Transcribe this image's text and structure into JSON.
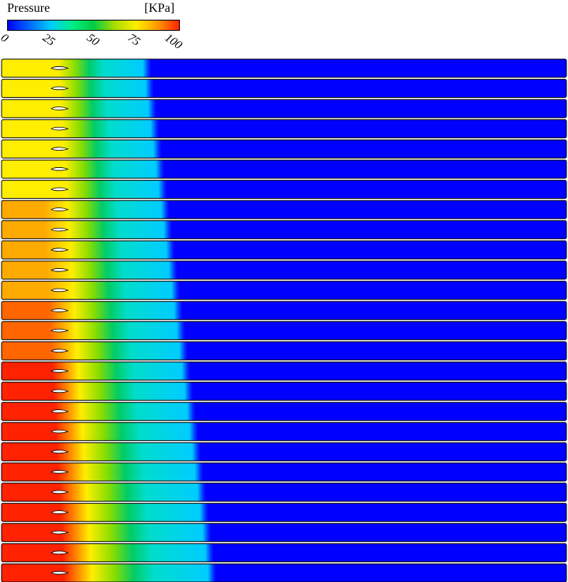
{
  "legend": {
    "title": "Pressure",
    "unit": "[KPa]",
    "ticks": [
      "0",
      "25",
      "50",
      "75",
      "100"
    ],
    "range": [
      0,
      100
    ],
    "colormap": [
      "#0000ff",
      "#0066ff",
      "#00ccff",
      "#00ee88",
      "#00cc44",
      "#aadd00",
      "#ffee00",
      "#ff9900",
      "#ff2200"
    ]
  },
  "frames": {
    "count": 26,
    "front_position_start": 0.26,
    "front_position_end": 0.375,
    "airfoil_icon": "airfoil-outline"
  }
}
